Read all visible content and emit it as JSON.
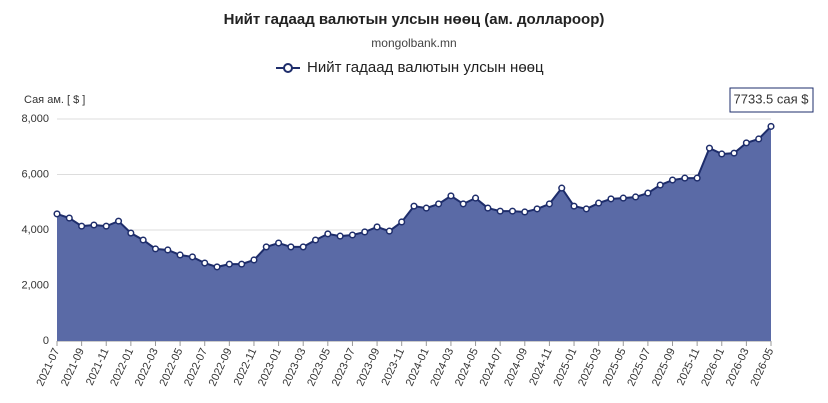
{
  "chart_data": {
    "type": "area",
    "title": "Нийт гадаад валютын улсын нөөц (ам. доллароор)",
    "subtitle": "mongolbank.mn",
    "y_label": "Сая ам. [ $ ]",
    "annotation": "7733.5 сая $",
    "categories": [
      "2021-07",
      null,
      "2021-09",
      null,
      "2021-11",
      null,
      "2022-01",
      null,
      "2022-03",
      null,
      "2022-05",
      null,
      "2022-07",
      null,
      "2022-09",
      null,
      "2022-11",
      null,
      "2023-01",
      null,
      "2023-03",
      null,
      "2023-05",
      null,
      "2023-07",
      null,
      "2023-09",
      null,
      "2023-11",
      null,
      "2024-01",
      null,
      "2024-03",
      null,
      "2024-05",
      null,
      "2024-07",
      null,
      "2024-09",
      null,
      "2024-11",
      null,
      "2025-01",
      null,
      "2025-03",
      null,
      "2025-05",
      null,
      "2025-07",
      null,
      "2025-09",
      null,
      "2025-11",
      null,
      "2026-01",
      null,
      "2026-03",
      null,
      "2026-05"
    ],
    "series": [
      {
        "name": "Нийт гадаад валютын улсын нөөц",
        "color": "#1e2d6b",
        "fill": "#5a6aa6",
        "values": [
          4580,
          4430,
          4140,
          4180,
          4140,
          4320,
          3890,
          3640,
          3320,
          3280,
          3100,
          3030,
          2810,
          2670,
          2770,
          2770,
          2920,
          3390,
          3530,
          3390,
          3390,
          3640,
          3860,
          3780,
          3820,
          3930,
          4110,
          3960,
          4290,
          4860,
          4790,
          4940,
          5230,
          4940,
          5150,
          4790,
          4680,
          4680,
          4650,
          4760,
          4940,
          5510,
          4860,
          4760,
          4970,
          5120,
          5150,
          5190,
          5330,
          5620,
          5800,
          5870,
          5870,
          6950,
          6740,
          6770,
          7140,
          7280,
          7733.5
        ]
      }
    ],
    "ylim": [
      0,
      8000
    ],
    "yticks": [
      0,
      {
        "value": 2000,
        "label": "2,000"
      },
      {
        "value": 4000,
        "label": "4,000"
      },
      {
        "value": 6000,
        "label": "6,000"
      },
      {
        "value": 8000,
        "label": "8,000"
      }
    ],
    "grid": true
  }
}
